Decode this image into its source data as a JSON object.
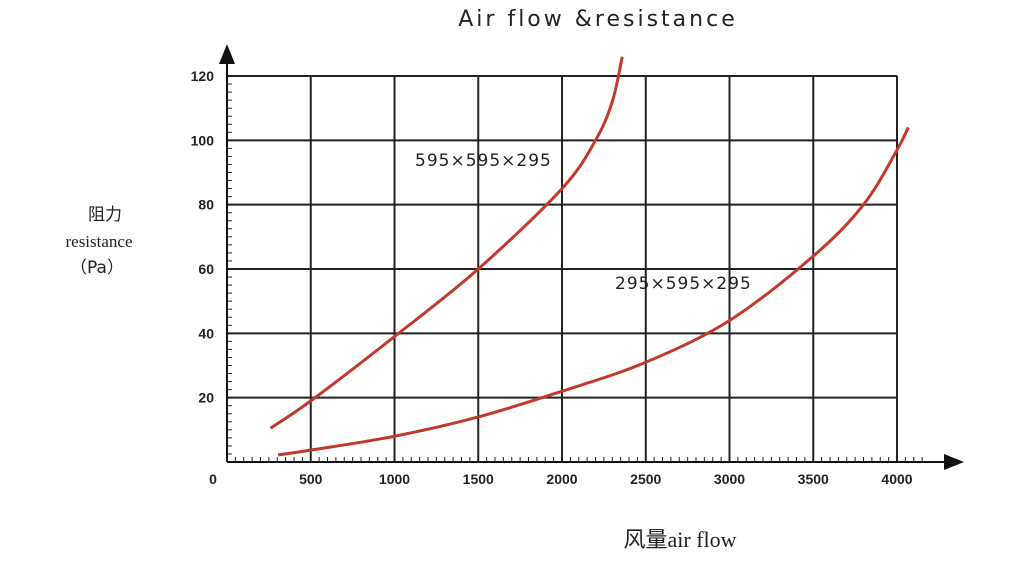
{
  "chart_data": {
    "type": "line",
    "title": "Air flow &resistance",
    "x_label": "风量air flow",
    "y_label": [
      "阻力",
      "resistance",
      "（Pa）"
    ],
    "xlim": [
      0,
      4380
    ],
    "ylim": [
      0,
      129
    ],
    "xticks": [
      0,
      500,
      1000,
      1500,
      2000,
      2500,
      3000,
      3500,
      4000
    ],
    "yticks": [
      20,
      40,
      60,
      80,
      100,
      120
    ],
    "grid": true,
    "series": [
      {
        "name": "595×595×295",
        "color": "#c0392b",
        "x": [
          260,
          500,
          1000,
          1500,
          2000,
          2200,
          2300,
          2360
        ],
        "values": [
          10.5,
          19,
          39,
          60,
          85,
          100,
          112,
          126
        ]
      },
      {
        "name": "295×595×295",
        "color": "#c0392b",
        "x": [
          305,
          500,
          1000,
          1500,
          2000,
          2500,
          3000,
          3500,
          3800,
          4000,
          4067
        ],
        "values": [
          2.2,
          3.7,
          8,
          14,
          22,
          31,
          44,
          64,
          80,
          97,
          104
        ]
      }
    ]
  }
}
